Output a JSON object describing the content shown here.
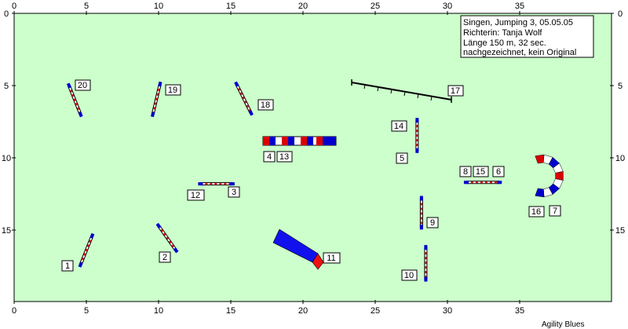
{
  "info": {
    "line1": "Singen, Jumping 3, 05.05.05",
    "line2": "Richterin: Tanja Wolf",
    "line3": "Länge 150 m, 32 sec.",
    "line4": "nachgezeichnet, kein Original"
  },
  "credit": "Agility Blues",
  "axes": {
    "top": [
      "0",
      "5",
      "10",
      "15",
      "20",
      "25",
      "30",
      "35"
    ],
    "bottom": [
      "0",
      "5",
      "10",
      "15",
      "20",
      "25",
      "30",
      "35"
    ],
    "left": [
      "0",
      "5",
      "10",
      "15"
    ],
    "right": [
      "0",
      "5",
      "10",
      "15"
    ]
  },
  "colors": {
    "field": "#ccffcc",
    "bar_red": "#dd0000",
    "bar_blue": "#0000cc",
    "tunnel_blue": "#1111ee",
    "tunnel_red": "#ee1111"
  },
  "obstacles": {
    "jumps": [
      {
        "from": [
          3.8,
          5.0
        ],
        "to": [
          4.6,
          7.0
        ],
        "label": "20"
      },
      {
        "from": [
          10.1,
          4.9
        ],
        "to": [
          9.6,
          7.0
        ],
        "label": "19"
      },
      {
        "from": [
          15.4,
          4.9
        ],
        "to": [
          16.4,
          6.9
        ],
        "label": "18"
      },
      {
        "from": [
          27.9,
          7.4
        ],
        "to": [
          27.9,
          9.5
        ],
        "label": "14"
      },
      {
        "from": [
          12.9,
          11.8
        ],
        "to": [
          15.1,
          11.8
        ],
        "label": "3"
      },
      {
        "from": [
          31.3,
          11.7
        ],
        "to": [
          33.6,
          11.7
        ],
        "label": "6"
      },
      {
        "from": [
          28.2,
          12.8
        ],
        "to": [
          28.2,
          14.8
        ],
        "label": "9"
      },
      {
        "from": [
          5.4,
          15.4
        ],
        "to": [
          4.6,
          17.4
        ],
        "label": "1"
      },
      {
        "from": [
          10.0,
          14.7
        ],
        "to": [
          11.2,
          16.4
        ],
        "label": "2"
      },
      {
        "from": [
          28.5,
          16.2
        ],
        "to": [
          28.5,
          18.4
        ],
        "label": "10"
      }
    ],
    "wall": {
      "from": [
        17.2,
        8.8
      ],
      "to": [
        22.8,
        8.8
      ],
      "labels": [
        "4",
        "13"
      ]
    },
    "dogwalk": {
      "from": [
        23.4,
        4.7
      ],
      "to": [
        30.3,
        6.0
      ],
      "label": "17"
    },
    "labels_extra": [
      "5",
      "8",
      "15",
      "12",
      "11",
      "16",
      "7"
    ]
  }
}
